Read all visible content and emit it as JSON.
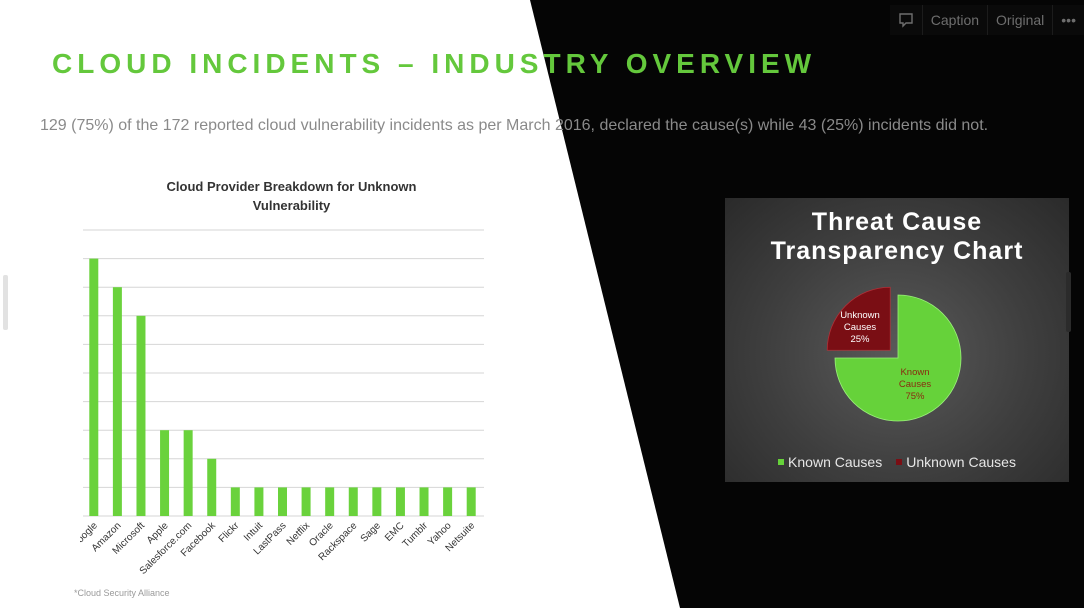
{
  "slide": {
    "title": "CLOUD INCIDENTS – INDUSTRY OVERVIEW",
    "subtitle": "129 (75%) of the 172 reported cloud vulnerability incidents as per March 2016, declared the cause(s) while 43 (25%) incidents did not.",
    "footnote": "*Cloud Security Alliance"
  },
  "toolbar": {
    "comment_icon": "comment-icon",
    "caption_label": "Caption",
    "original_label": "Original",
    "more_label": "•••"
  },
  "colors": {
    "accent_green": "#64c83c",
    "bar_green": "#6ad23c",
    "known_green": "#66d23a",
    "unknown_red": "#7a0e14"
  },
  "chart_data": [
    {
      "type": "bar",
      "title": "Cloud Provider Breakdown for Unknown Vulnerability",
      "categories": [
        "Google",
        "Amazon",
        "Microsoft",
        "Apple",
        "Salesforce.com",
        "Facebook",
        "Flickr",
        "Intuit",
        "LastPass",
        "Netflix",
        "Oracle",
        "Rackspace",
        "Sage",
        "EMC",
        "Tumblr",
        "Yahoo",
        "Netsuite"
      ],
      "values": [
        9,
        8,
        7,
        3,
        3,
        2,
        1,
        1,
        1,
        1,
        1,
        1,
        1,
        1,
        1,
        1,
        1
      ],
      "ylim": [
        0,
        10
      ],
      "yticks": [
        "0",
        "1",
        "2",
        "3",
        "4",
        "5",
        "6",
        "7",
        "8",
        "9",
        "10"
      ],
      "grid": true,
      "legend": "none"
    },
    {
      "type": "pie",
      "title": "Threat Cause Transparency Chart",
      "slices": [
        {
          "name": "Known Causes",
          "value": 75,
          "label_line1": "Known",
          "label_line2": "Causes",
          "label_line3": "75%"
        },
        {
          "name": "Unknown Causes",
          "value": 25,
          "label_line1": "Unknown",
          "label_line2": "Causes",
          "label_line3": "25%"
        }
      ],
      "legend": "bottom"
    }
  ]
}
